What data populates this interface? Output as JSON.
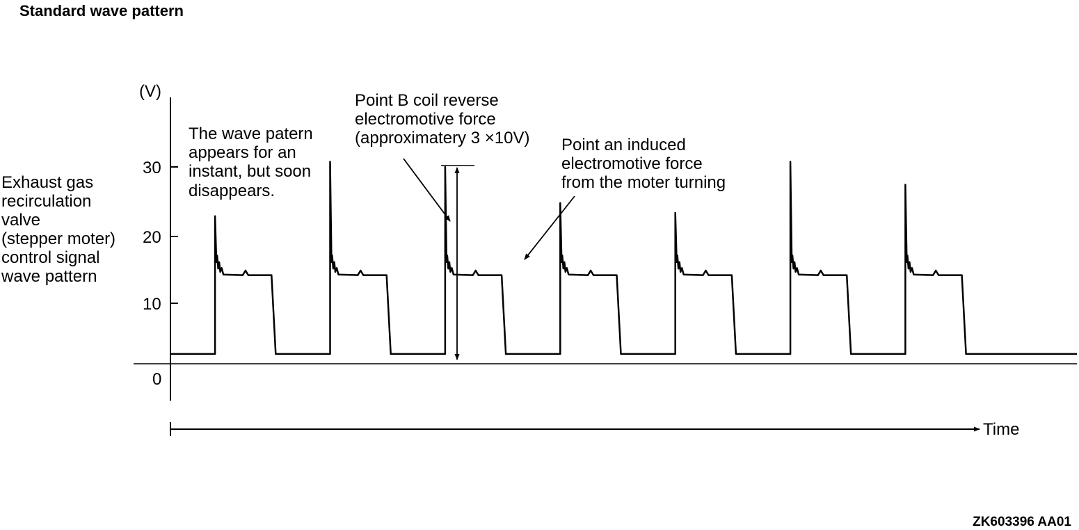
{
  "chart_data": {
    "type": "line",
    "title": "Standard wave pattern",
    "ylabel_unit": "(V)",
    "xlabel": "Time",
    "ylabel": [
      "Exhaust gas",
      "recirculation",
      "valve",
      "(stepper moter)",
      "control signal",
      "wave pattern"
    ],
    "yticks": [
      {
        "value": 30,
        "label": "30"
      },
      {
        "value": 20,
        "label": "20"
      },
      {
        "value": 10,
        "label": "10"
      },
      {
        "value": 0,
        "label": "0"
      }
    ],
    "ylim": [
      -6,
      39
    ],
    "xlim": [
      0,
      13
    ],
    "grid": false,
    "series": [
      {
        "baseline_v": 1.5,
        "plateau_v": 13.5,
        "pulses": [
          {
            "start": 0.64,
            "end": 1.48,
            "peak_v": 22.5
          },
          {
            "start": 2.29,
            "end": 3.13,
            "peak_v": 30.8
          },
          {
            "start": 3.94,
            "end": 4.78,
            "peak_v": 30.0
          },
          {
            "start": 5.59,
            "end": 6.43,
            "peak_v": 24.5
          },
          {
            "start": 7.24,
            "end": 8.08,
            "peak_v": 23.0
          },
          {
            "start": 8.89,
            "end": 9.73,
            "peak_v": 30.8
          },
          {
            "start": 10.54,
            "end": 11.38,
            "peak_v": 27.3
          }
        ]
      }
    ],
    "annotations": [
      {
        "id": "instant",
        "lines": [
          "The wave patern",
          "appears for an",
          "instant, but soon",
          "disappears."
        ]
      },
      {
        "id": "point_b",
        "lines": [
          "Point B coil reverse",
          "electromotive force",
          "(approximatery 3 ×10V)"
        ]
      },
      {
        "id": "point_a",
        "lines": [
          "Point an induced",
          "electromotive force",
          "from the moter turning"
        ]
      }
    ]
  },
  "figure_code": "ZK603396 AA01"
}
